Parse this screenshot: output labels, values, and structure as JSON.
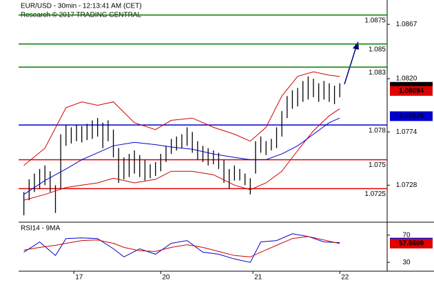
{
  "chart_data": [
    {
      "type": "candlestick",
      "title": "EUR/USD - 30min - 12:13:41 AM (CET)",
      "subtitle": "Research © 2017 TRADING CENTRAL",
      "xlim": [
        -1,
        69
      ],
      "ylim": [
        1.0696,
        1.0888
      ],
      "yticks": [
        1.0867,
        {
          "value": 1.082,
          "label": "1.0820"
        },
        1.0774,
        1.0728
      ],
      "color": "#000000",
      "highs": [
        1.0722,
        1.0733,
        1.0738,
        1.0742,
        1.0745,
        1.074,
        1.0728,
        1.0772,
        1.078,
        1.0778,
        1.078,
        1.0779,
        1.0781,
        1.0784,
        1.0786,
        1.0782,
        1.0784,
        1.0776,
        1.076,
        1.0752,
        1.0755,
        1.0758,
        1.0754,
        1.075,
        1.0746,
        1.0748,
        1.0755,
        1.0762,
        1.0768,
        1.077,
        1.0772,
        1.0778,
        1.0774,
        1.0766,
        1.0762,
        1.076,
        1.0758,
        1.0756,
        1.075,
        1.0742,
        1.0745,
        1.0742,
        1.0738,
        1.0734,
        1.0766,
        1.077,
        1.0766,
        1.0768,
        1.0778,
        1.0792,
        1.0805,
        1.081,
        1.0812,
        1.0818,
        1.0822,
        1.082,
        1.0816,
        1.0818,
        1.0816,
        1.0814,
        1.0816
      ],
      "lows": [
        1.0702,
        1.0715,
        1.0722,
        1.0725,
        1.0728,
        1.0722,
        1.0704,
        1.0725,
        1.0762,
        1.0764,
        1.0766,
        1.0765,
        1.0767,
        1.0768,
        1.077,
        1.076,
        1.0766,
        1.0752,
        1.073,
        1.0733,
        1.0735,
        1.0738,
        1.0735,
        1.0732,
        1.0734,
        1.0736,
        1.074,
        1.0748,
        1.0755,
        1.0758,
        1.076,
        1.0762,
        1.0756,
        1.075,
        1.0748,
        1.0745,
        1.0746,
        1.0742,
        1.073,
        1.0725,
        1.0732,
        1.0732,
        1.0728,
        1.072,
        1.0738,
        1.0756,
        1.0754,
        1.0758,
        1.076,
        1.077,
        1.0786,
        1.0794,
        1.0796,
        1.08,
        1.0802,
        1.0804,
        1.08,
        1.0802,
        1.08,
        1.0798,
        1.0804
      ],
      "series": [
        {
          "color": "#cc0000",
          "x": [
            0,
            4,
            8,
            11,
            14,
            17,
            21,
            25,
            28,
            32,
            36,
            40,
            43,
            46,
            49,
            52,
            55,
            58,
            60
          ],
          "values": [
            1.0745,
            1.076,
            1.0795,
            1.08,
            1.0797,
            1.08,
            1.0782,
            1.0776,
            1.0784,
            1.0786,
            1.0778,
            1.0772,
            1.0766,
            1.0778,
            1.0805,
            1.0822,
            1.0826,
            1.0823,
            1.0822
          ]
        },
        {
          "color": "#cc0000",
          "x": [
            0,
            4,
            8,
            11,
            14,
            17,
            21,
            25,
            28,
            32,
            36,
            40,
            43,
            46,
            49,
            52,
            55,
            58,
            60
          ],
          "values": [
            1.0715,
            1.072,
            1.0726,
            1.0728,
            1.073,
            1.0734,
            1.073,
            1.0733,
            1.074,
            1.074,
            1.0737,
            1.0728,
            1.0724,
            1.073,
            1.074,
            1.0758,
            1.0775,
            1.0788,
            1.0794
          ]
        },
        {
          "color": "#0000cc",
          "x": [
            0,
            4,
            8,
            11,
            14,
            17,
            21,
            25,
            28,
            32,
            36,
            40,
            43,
            46,
            49,
            52,
            55,
            58,
            60
          ],
          "values": [
            1.072,
            1.0732,
            1.0742,
            1.075,
            1.0756,
            1.0762,
            1.0765,
            1.0763,
            1.0761,
            1.0759,
            1.0755,
            1.0752,
            1.075,
            1.075,
            1.0755,
            1.0762,
            1.0772,
            1.0782,
            1.0786
          ]
        }
      ],
      "levels": [
        {
          "value": 1.0875,
          "color": "#008000"
        },
        {
          "value": 1.085,
          "color": "#008000"
        },
        {
          "value": 1.083,
          "color": "#008000"
        },
        {
          "value": 1.078,
          "color": "#0000cc"
        },
        {
          "value": 1.075,
          "color": "#e00000"
        },
        {
          "value": 1.0725,
          "color": "#e00000"
        }
      ],
      "tags": [
        {
          "value": 1.0813,
          "color": "#000000"
        },
        {
          "value": 1.08094,
          "color": "#e00000"
        },
        {
          "value": 1.07876,
          "color": "#0000cc"
        }
      ]
    },
    {
      "type": "line",
      "title": "RSI14 - 9MA",
      "xlim": [
        -1,
        69
      ],
      "ylim": [
        17,
        87
      ],
      "yticks": [
        70,
        30
      ],
      "xticks": [
        {
          "value": 9.5,
          "label": "17"
        },
        {
          "value": 26,
          "label": "20"
        },
        {
          "value": 43.5,
          "label": "21"
        },
        {
          "value": 60,
          "label": "22"
        }
      ],
      "series": [
        {
          "color": "#0000cc",
          "x": [
            0,
            3,
            6,
            8,
            11,
            14,
            17,
            19,
            22,
            25,
            28,
            31,
            34,
            37,
            40,
            43,
            45,
            48,
            51,
            54,
            57,
            60
          ],
          "values": [
            45,
            60,
            40,
            65,
            66,
            65,
            50,
            38,
            50,
            42,
            58,
            62,
            45,
            42,
            35,
            30,
            60,
            62,
            72,
            68,
            60,
            59
          ]
        },
        {
          "color": "#cc0000",
          "x": [
            0,
            3,
            6,
            8,
            11,
            14,
            17,
            19,
            22,
            25,
            28,
            31,
            34,
            37,
            40,
            43,
            45,
            48,
            51,
            54,
            57,
            60
          ],
          "values": [
            48,
            52,
            55,
            58,
            62,
            63,
            58,
            52,
            47,
            46,
            52,
            56,
            52,
            46,
            40,
            38,
            45,
            55,
            65,
            68,
            63,
            57.6
          ]
        }
      ],
      "tags": [
        {
          "value": 58.9607,
          "color": "#0000cc"
        },
        {
          "value": 57.5609,
          "color": "#e00000"
        }
      ]
    }
  ]
}
